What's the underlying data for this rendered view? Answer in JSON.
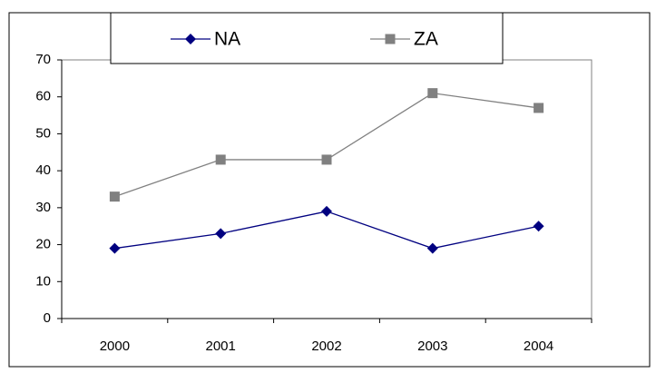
{
  "chart_data": {
    "type": "line",
    "categories": [
      "2000",
      "2001",
      "2002",
      "2003",
      "2004"
    ],
    "series": [
      {
        "name": "NA",
        "color": "#000080",
        "marker": "diamond",
        "values": [
          19,
          23,
          29,
          19,
          25
        ]
      },
      {
        "name": "ZA",
        "color": "#808080",
        "marker": "square",
        "values": [
          33,
          43,
          43,
          61,
          57
        ]
      }
    ],
    "ylim": [
      0,
      70
    ],
    "yticks": [
      0,
      10,
      20,
      30,
      40,
      50,
      60,
      70
    ],
    "grid": false,
    "legend": "top"
  }
}
